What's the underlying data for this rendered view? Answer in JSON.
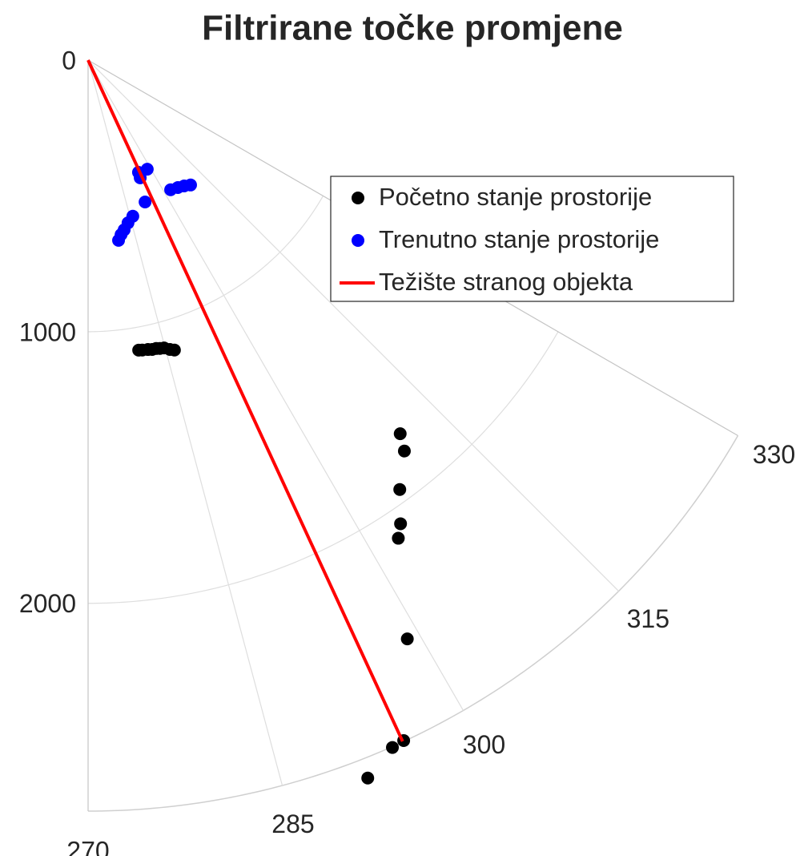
{
  "chart_data": {
    "type": "polar",
    "title": "Filtrirane točke promjene",
    "thetalim": [
      270,
      330
    ],
    "thetaticks": [
      270,
      285,
      300,
      315,
      330
    ],
    "rlim": [
      0,
      2765
    ],
    "rticks": [
      0,
      1000,
      2000
    ],
    "grid": true,
    "legend": "upper right",
    "series": [
      {
        "name": "Početno stanje prostorije",
        "color": "#000000",
        "mode": "markers",
        "theta": [
          279.9,
          280.6,
          281.7,
          282.5,
          283.3,
          284.0,
          284.8,
          285.8,
          286.6,
          309.9,
          309.0,
          306.0,
          304.0,
          303.0,
          298.9,
          294.9,
          293.9,
          291.3
        ],
        "r": [
          1084,
          1086,
          1088,
          1091,
          1091,
          1094,
          1096,
          1107,
          1114,
          1793,
          1852,
          1954,
          2059,
          2099,
          2434,
          2762,
          2768,
          2837
        ]
      },
      {
        "name": "Trenutno stanje prostorije",
        "color": "#0000ff",
        "mode": "markers",
        "theta": [
          298.5,
          293.9,
          294.2,
          291.9,
          302.5,
          305.2,
          307.4,
          309.4,
          286.0,
          283.8,
          282.0,
          280.7,
          279.6
        ],
        "r": [
          457,
          474,
          453,
          563,
          566,
          574,
          583,
          595,
          598,
          617,
          639,
          654,
          673
        ]
      },
      {
        "name": "Težište stranog objekta",
        "color": "#ff0000",
        "mode": "line",
        "theta": [
          294.8,
          294.8
        ],
        "r": [
          0,
          2763
        ]
      }
    ]
  }
}
